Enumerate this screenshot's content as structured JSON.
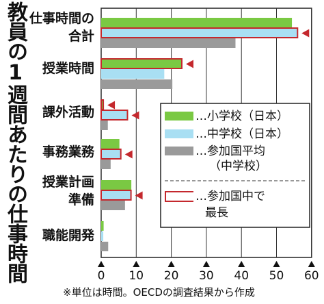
{
  "chart_data": {
    "type": "bar",
    "title": "教員の1週間あたりの仕事時間",
    "categories": [
      "仕事時間の\n合計",
      "授業時間",
      "課外活動",
      "事務業務",
      "授業計画\n準備",
      "職能開発"
    ],
    "series": [
      {
        "name": "…小学校（日本）",
        "color": "#7ac943",
        "values": [
          54.4,
          23.0,
          0.6,
          5.2,
          8.6,
          0.7
        ]
      },
      {
        "name": "…中学校（日本）",
        "color": "#a9dff3",
        "values": [
          56.0,
          18.0,
          7.5,
          5.6,
          8.5,
          0.6
        ]
      },
      {
        "name": "…参加国平均\n（中学校）",
        "color": "#9a9a9a",
        "values": [
          38.3,
          20.3,
          1.9,
          2.7,
          6.8,
          2.0
        ]
      }
    ],
    "longest_markers": [
      [
        0,
        1
      ],
      [
        1,
        0
      ],
      [
        1,
        1
      ],
      [
        0,
        1
      ],
      [
        0,
        1
      ],
      [
        0,
        0
      ]
    ],
    "marker_legend": "…参加国中で\n最長",
    "marker_color": "#c4282d",
    "x_ticks": [
      0,
      10,
      20,
      30,
      40,
      50,
      60
    ],
    "xlim": [
      0,
      60
    ],
    "grid": true,
    "legend_position": "right",
    "source": "※単位は時間。OECDの調査結果から作成"
  }
}
